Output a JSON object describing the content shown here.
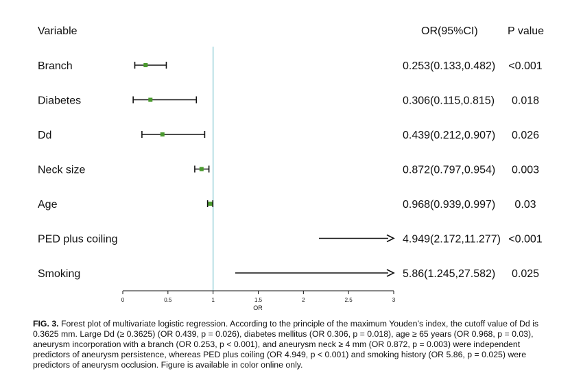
{
  "chart_data": {
    "type": "forest",
    "headers": {
      "variable": "Variable",
      "or_ci": "OR(95%CI)",
      "p_value": "P value"
    },
    "xlabel": "OR",
    "xlim": [
      0,
      3
    ],
    "xticks": [
      "0",
      "0.5",
      "1",
      "1.5",
      "2",
      "2.5",
      "3"
    ],
    "reference_line": 1,
    "colors": {
      "point": "#4a9a2e",
      "reference": "#7cc5cf",
      "line": "#111111"
    },
    "rows": [
      {
        "variable": "Branch",
        "or": 0.253,
        "lower": 0.133,
        "upper": 0.482,
        "or_ci_text": "0.253(0.133,0.482)",
        "p": "<0.001"
      },
      {
        "variable": "Diabetes",
        "or": 0.306,
        "lower": 0.115,
        "upper": 0.815,
        "or_ci_text": "0.306(0.115,0.815)",
        "p": "0.018"
      },
      {
        "variable": "Dd",
        "or": 0.439,
        "lower": 0.212,
        "upper": 0.907,
        "or_ci_text": "0.439(0.212,0.907)",
        "p": "0.026"
      },
      {
        "variable": "Neck size",
        "or": 0.872,
        "lower": 0.797,
        "upper": 0.954,
        "or_ci_text": "0.872(0.797,0.954)",
        "p": "0.003"
      },
      {
        "variable": "Age",
        "or": 0.968,
        "lower": 0.939,
        "upper": 0.997,
        "or_ci_text": "0.968(0.939,0.997)",
        "p": "0.03"
      },
      {
        "variable": "PED plus coiling",
        "or": 4.949,
        "lower": 2.172,
        "upper": 11.277,
        "or_ci_text": "4.949(2.172,11.277)",
        "p": "<0.001"
      },
      {
        "variable": "Smoking",
        "or": 5.86,
        "lower": 1.245,
        "upper": 27.582,
        "or_ci_text": "5.86(1.245,27.582)",
        "p": "0.025"
      }
    ]
  },
  "caption": {
    "label": "FIG. 3.",
    "text": "Forest plot of multivariate logistic regression. According to the principle of the maximum Youden’s index, the cutoff value of Dd is 0.3625 mm. Large Dd (≥ 0.3625) (OR 0.439, p = 0.026), diabetes mellitus (OR 0.306, p = 0.018), age ≥ 65 years (OR 0.968, p = 0.03), aneurysm incorporation with a branch (OR 0.253, p < 0.001), and aneurysm neck ≥ 4 mm (OR 0.872, p = 0.003) were independent predictors of aneurysm persistence, whereas PED plus coiling (OR 4.949, p < 0.001) and smoking history (OR 5.86, p = 0.025) were predictors of aneurysm occlusion. Figure is available in color online only."
  }
}
